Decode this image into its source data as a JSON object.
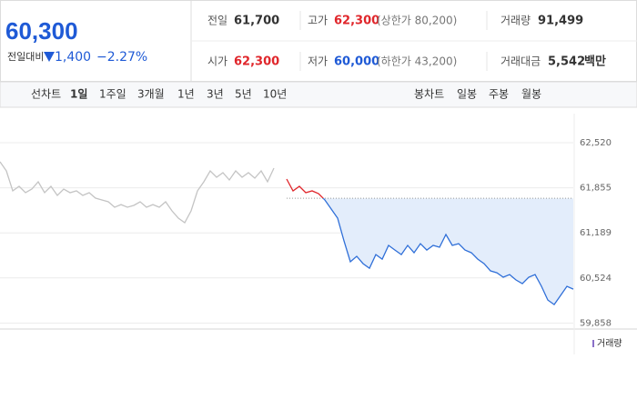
{
  "header": {
    "price": "60,300",
    "change_label": "전일대비",
    "change": "1,400",
    "change_rate": "−2.27%",
    "stats": [
      {
        "label": "전일",
        "value": "61,700"
      },
      {
        "label": "고가",
        "value": "62,300",
        "note": "(상한가 80,200)"
      },
      {
        "label": "거래량",
        "value": "91,499"
      },
      {
        "label": "시가",
        "value": "62,300"
      },
      {
        "label": "저가",
        "value": "60,000",
        "note": "(하한가 43,200)"
      },
      {
        "label": "거래대금",
        "value": "5,542",
        "unit": "백만"
      }
    ]
  },
  "tabs": {
    "line_label": "선차트",
    "line": [
      "1일",
      "1주일",
      "3개월",
      "1년",
      "3년",
      "5년",
      "10년"
    ],
    "candle_label": "봉차트",
    "candle": [
      "일봉",
      "주봉",
      "월봉"
    ]
  },
  "chart_data": {
    "type": "line",
    "volume_label": "거래량",
    "ylim": [
      59770,
      62815
    ],
    "yticks": [
      {
        "value": 62520,
        "label": "62,520"
      },
      {
        "value": 61855,
        "label": "61,855"
      },
      {
        "value": 61189,
        "label": "61,189"
      },
      {
        "value": 60524,
        "label": "60,524"
      },
      {
        "value": 59858,
        "label": "59,858"
      }
    ],
    "grid": true,
    "baseline": 61700,
    "series": [
      {
        "color": "#c4c4c4",
        "values": [
          62238,
          62104,
          61809,
          61876,
          61782,
          61836,
          61943,
          61782,
          61876,
          61742,
          61836,
          61782,
          61809,
          61742,
          61782,
          61701,
          61675,
          61648,
          61567,
          61607,
          61567,
          61594,
          61648,
          61567,
          61607,
          61567,
          61648,
          61514,
          61406,
          61339,
          61514,
          61809,
          61943,
          62104,
          62010,
          62077,
          61970,
          62104,
          62010,
          62077,
          61997,
          62104,
          61943,
          62144,
          null,
          null,
          null,
          null,
          null,
          null,
          null,
          null,
          null,
          null,
          null,
          null,
          null,
          null,
          null,
          null,
          null,
          null,
          null,
          null,
          null,
          null,
          null,
          null,
          null,
          null,
          null,
          null,
          null,
          null,
          null,
          null,
          null,
          null,
          null,
          null,
          null,
          null,
          null,
          null,
          null,
          null,
          null,
          null,
          null,
          null,
          null
        ]
      },
      {
        "color": "#2f6fd8",
        "up_color": "#e0262b",
        "fill": "#e3edfb",
        "values": [
          null,
          null,
          null,
          null,
          null,
          null,
          null,
          null,
          null,
          null,
          null,
          null,
          null,
          null,
          null,
          null,
          null,
          null,
          null,
          null,
          null,
          null,
          null,
          null,
          null,
          null,
          null,
          null,
          null,
          null,
          null,
          null,
          null,
          null,
          null,
          null,
          null,
          null,
          null,
          null,
          null,
          null,
          null,
          null,
          null,
          61983,
          61809,
          61876,
          61782,
          61809,
          61769,
          61675,
          61540,
          61406,
          61071,
          60762,
          60843,
          60735,
          60668,
          60869,
          60802,
          61004,
          60936,
          60869,
          61004,
          60896,
          61030,
          60936,
          61004,
          60977,
          61165,
          61004,
          61030,
          60936,
          60896,
          60802,
          60735,
          60628,
          60601,
          60534,
          60574,
          60494,
          60440,
          60534,
          60574,
          60400,
          60198,
          60131,
          60265,
          60400,
          60359
        ]
      }
    ]
  }
}
